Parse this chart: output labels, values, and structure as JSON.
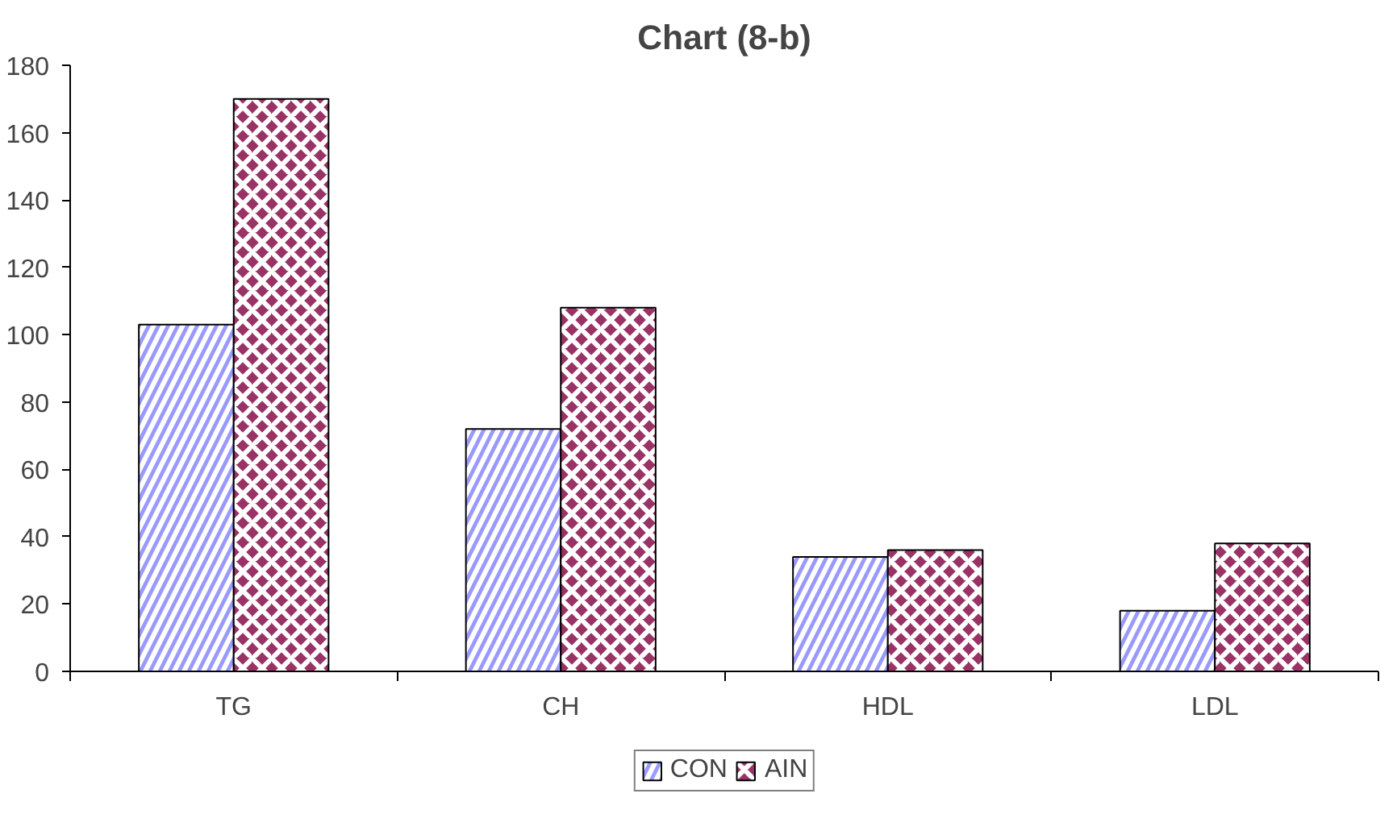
{
  "chart_data": {
    "type": "bar",
    "title": "Chart (8-b)",
    "categories": [
      "TG",
      "CH",
      "HDL",
      "LDL"
    ],
    "series": [
      {
        "name": "CON",
        "color": "#9999ff",
        "values": [
          103,
          72,
          34,
          18
        ]
      },
      {
        "name": "AIN",
        "color": "#993366",
        "values": [
          170,
          108,
          36,
          38
        ]
      }
    ],
    "ylim": [
      0,
      180
    ],
    "yticks": [
      0,
      20,
      40,
      60,
      80,
      100,
      120,
      140,
      160,
      180
    ],
    "grid": false,
    "legend": "bottom"
  }
}
